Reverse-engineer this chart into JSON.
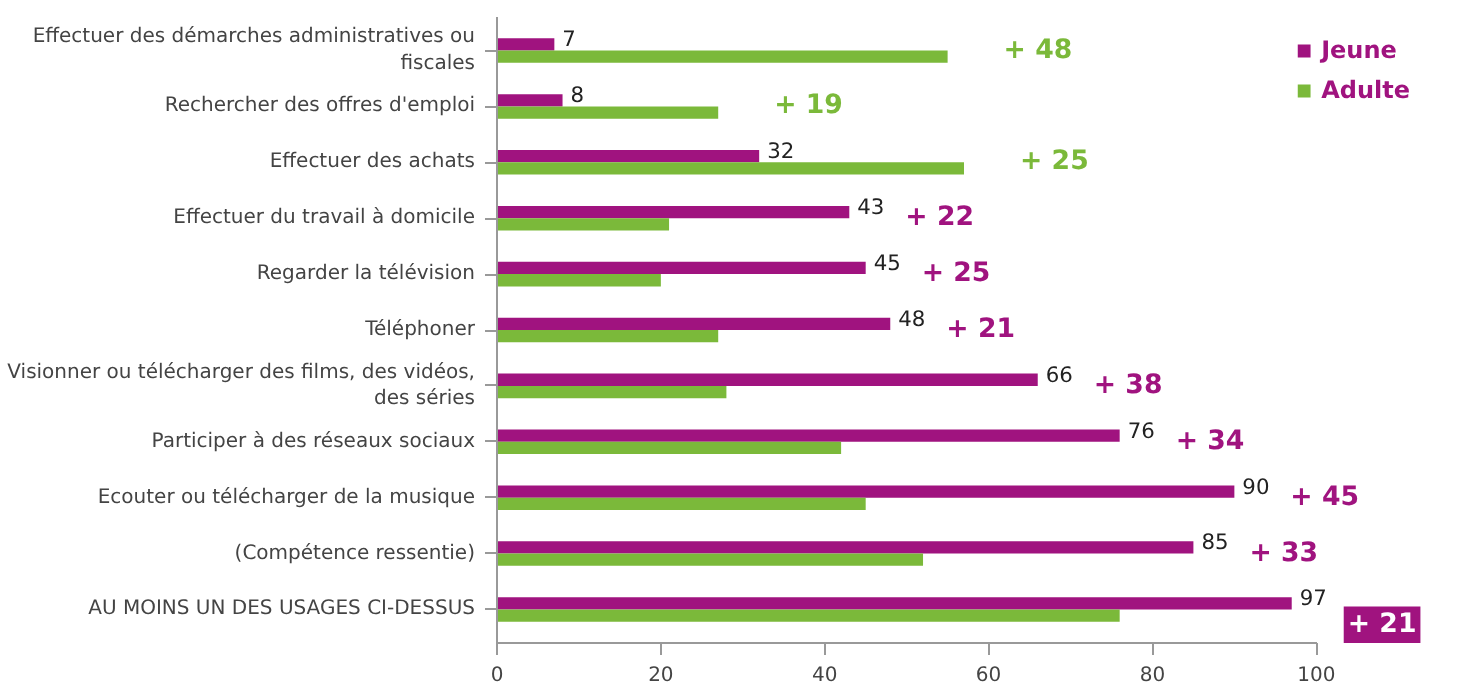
{
  "chart_data": {
    "type": "bar",
    "orientation": "horizontal",
    "categories": [
      "Effectuer des démarches administratives ou fiscales",
      "Rechercher des offres d'emploi",
      "Effectuer des achats",
      "Effectuer du travail à domicile",
      "Regarder la télévision",
      "Téléphoner",
      "Visionner ou télécharger des films, des vidéos, des séries",
      "Participer à des réseaux sociaux",
      "Ecouter ou télécharger de la musique",
      "(Compétence ressentie)",
      "AU MOINS UN DES USAGES CI-DESSUS"
    ],
    "series": [
      {
        "name": "Jeune",
        "color": "#a0137f",
        "values": [
          7,
          8,
          32,
          43,
          45,
          48,
          66,
          76,
          90,
          85,
          97
        ],
        "value_labels": [
          "7",
          "8",
          "32",
          "43",
          "45",
          "48",
          "66",
          "76",
          "90",
          "85",
          "97"
        ]
      },
      {
        "name": "Adulte",
        "color": "#7bb93a",
        "values": [
          55,
          27,
          57,
          21,
          20,
          27,
          28,
          42,
          45,
          52,
          76
        ]
      }
    ],
    "annotations": [
      "+ 48",
      "+ 19",
      "+ 25",
      "+ 22",
      "+ 25",
      "+ 21",
      "+ 38",
      "+ 34",
      "+ 45",
      "+ 33",
      "+ 21"
    ],
    "xlim": [
      0,
      100
    ],
    "xticks": [
      0,
      20,
      40,
      60,
      80,
      100
    ],
    "grid": false,
    "legend": "top right"
  }
}
